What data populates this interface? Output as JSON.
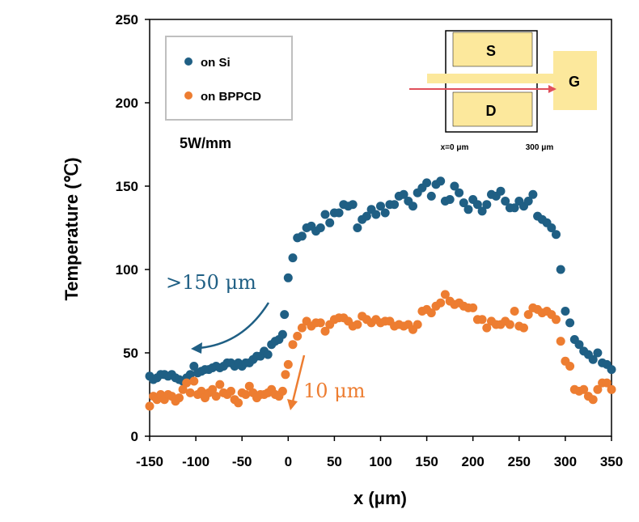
{
  "chart_data": {
    "type": "scatter",
    "xlabel": "x (μm)",
    "ylabel": "Temperature (℃)",
    "xlim": [
      -150,
      350
    ],
    "ylim": [
      0,
      250
    ],
    "xticks": [
      -150,
      -100,
      -50,
      0,
      50,
      100,
      150,
      200,
      250,
      300,
      350
    ],
    "yticks": [
      0,
      50,
      100,
      150,
      200,
      250
    ],
    "xtick_labels": [
      "-150",
      "-100",
      "-50",
      "0",
      "50",
      "100",
      "150",
      "200",
      "250",
      "300",
      "350"
    ],
    "ytick_labels": [
      "0",
      "50",
      "100",
      "150",
      "200",
      "250"
    ],
    "condition": "5W/mm",
    "legend": {
      "position": "top-left",
      "entries": [
        "on Si",
        "on BPPCD"
      ]
    },
    "series": [
      {
        "name": "on Si",
        "color": "#1f5f84",
        "points": [
          [
            -150,
            36
          ],
          [
            -146,
            34
          ],
          [
            -142,
            35
          ],
          [
            -138,
            37
          ],
          [
            -134,
            37
          ],
          [
            -130,
            36
          ],
          [
            -126,
            37
          ],
          [
            -122,
            35
          ],
          [
            -118,
            34
          ],
          [
            -114,
            33
          ],
          [
            -110,
            35
          ],
          [
            -106,
            37
          ],
          [
            -102,
            42
          ],
          [
            -98,
            38
          ],
          [
            -94,
            39
          ],
          [
            -90,
            40
          ],
          [
            -86,
            40
          ],
          [
            -82,
            41
          ],
          [
            -78,
            42
          ],
          [
            -74,
            41
          ],
          [
            -70,
            42
          ],
          [
            -66,
            44
          ],
          [
            -62,
            44
          ],
          [
            -58,
            42
          ],
          [
            -54,
            44
          ],
          [
            -50,
            42
          ],
          [
            -46,
            44
          ],
          [
            -42,
            44
          ],
          [
            -38,
            46
          ],
          [
            -34,
            48
          ],
          [
            -30,
            48
          ],
          [
            -26,
            51
          ],
          [
            -22,
            49
          ],
          [
            -18,
            55
          ],
          [
            -14,
            57
          ],
          [
            -10,
            58
          ],
          [
            -6,
            61
          ],
          [
            -4,
            73
          ],
          [
            0,
            95
          ],
          [
            5,
            107
          ],
          [
            10,
            119
          ],
          [
            15,
            120
          ],
          [
            20,
            125
          ],
          [
            25,
            126
          ],
          [
            30,
            123
          ],
          [
            35,
            125
          ],
          [
            40,
            133
          ],
          [
            45,
            128
          ],
          [
            50,
            134
          ],
          [
            55,
            134
          ],
          [
            60,
            139
          ],
          [
            65,
            138
          ],
          [
            70,
            139
          ],
          [
            75,
            125
          ],
          [
            80,
            130
          ],
          [
            85,
            132
          ],
          [
            90,
            136
          ],
          [
            95,
            133
          ],
          [
            100,
            138
          ],
          [
            105,
            134
          ],
          [
            110,
            139
          ],
          [
            115,
            139
          ],
          [
            120,
            144
          ],
          [
            125,
            145
          ],
          [
            130,
            141
          ],
          [
            135,
            138
          ],
          [
            140,
            146
          ],
          [
            145,
            149
          ],
          [
            150,
            152
          ],
          [
            155,
            144
          ],
          [
            160,
            151
          ],
          [
            165,
            153
          ],
          [
            170,
            141
          ],
          [
            175,
            142
          ],
          [
            180,
            150
          ],
          [
            185,
            146
          ],
          [
            190,
            140
          ],
          [
            195,
            136
          ],
          [
            200,
            142
          ],
          [
            205,
            139
          ],
          [
            210,
            135
          ],
          [
            215,
            139
          ],
          [
            220,
            145
          ],
          [
            225,
            144
          ],
          [
            230,
            147
          ],
          [
            235,
            141
          ],
          [
            240,
            137
          ],
          [
            245,
            137
          ],
          [
            250,
            141
          ],
          [
            255,
            138
          ],
          [
            260,
            141
          ],
          [
            265,
            145
          ],
          [
            270,
            132
          ],
          [
            275,
            130
          ],
          [
            280,
            128
          ],
          [
            285,
            125
          ],
          [
            290,
            121
          ],
          [
            295,
            100
          ],
          [
            300,
            75
          ],
          [
            305,
            68
          ],
          [
            310,
            58
          ],
          [
            315,
            55
          ],
          [
            320,
            51
          ],
          [
            325,
            49
          ],
          [
            330,
            46
          ],
          [
            335,
            50
          ],
          [
            340,
            44
          ],
          [
            345,
            43
          ],
          [
            350,
            40
          ]
        ]
      },
      {
        "name": "on BPPCD",
        "color": "#ed7d31",
        "points": [
          [
            -150,
            18
          ],
          [
            -146,
            24
          ],
          [
            -142,
            22
          ],
          [
            -138,
            25
          ],
          [
            -134,
            22
          ],
          [
            -130,
            25
          ],
          [
            -126,
            24
          ],
          [
            -122,
            21
          ],
          [
            -118,
            23
          ],
          [
            -114,
            28
          ],
          [
            -110,
            32
          ],
          [
            -106,
            26
          ],
          [
            -102,
            33
          ],
          [
            -98,
            25
          ],
          [
            -94,
            27
          ],
          [
            -90,
            23
          ],
          [
            -86,
            26
          ],
          [
            -82,
            28
          ],
          [
            -78,
            24
          ],
          [
            -74,
            31
          ],
          [
            -70,
            26
          ],
          [
            -66,
            25
          ],
          [
            -62,
            27
          ],
          [
            -58,
            22
          ],
          [
            -54,
            20
          ],
          [
            -50,
            26
          ],
          [
            -46,
            25
          ],
          [
            -42,
            30
          ],
          [
            -38,
            26
          ],
          [
            -34,
            23
          ],
          [
            -30,
            25
          ],
          [
            -26,
            25
          ],
          [
            -22,
            26
          ],
          [
            -18,
            28
          ],
          [
            -14,
            25
          ],
          [
            -10,
            24
          ],
          [
            -6,
            27
          ],
          [
            -3,
            37
          ],
          [
            0,
            43
          ],
          [
            5,
            55
          ],
          [
            10,
            60
          ],
          [
            15,
            65
          ],
          [
            20,
            69
          ],
          [
            25,
            66
          ],
          [
            30,
            68
          ],
          [
            35,
            68
          ],
          [
            40,
            63
          ],
          [
            45,
            67
          ],
          [
            50,
            70
          ],
          [
            55,
            71
          ],
          [
            60,
            71
          ],
          [
            65,
            69
          ],
          [
            70,
            66
          ],
          [
            75,
            67
          ],
          [
            80,
            72
          ],
          [
            85,
            70
          ],
          [
            90,
            68
          ],
          [
            95,
            70
          ],
          [
            100,
            68
          ],
          [
            105,
            69
          ],
          [
            110,
            69
          ],
          [
            115,
            66
          ],
          [
            120,
            67
          ],
          [
            125,
            66
          ],
          [
            130,
            67
          ],
          [
            135,
            64
          ],
          [
            140,
            67
          ],
          [
            145,
            75
          ],
          [
            150,
            76
          ],
          [
            155,
            74
          ],
          [
            160,
            78
          ],
          [
            165,
            80
          ],
          [
            170,
            85
          ],
          [
            175,
            81
          ],
          [
            180,
            79
          ],
          [
            185,
            80
          ],
          [
            190,
            78
          ],
          [
            195,
            77
          ],
          [
            200,
            77
          ],
          [
            205,
            70
          ],
          [
            210,
            70
          ],
          [
            215,
            65
          ],
          [
            220,
            69
          ],
          [
            225,
            67
          ],
          [
            230,
            67
          ],
          [
            235,
            69
          ],
          [
            240,
            67
          ],
          [
            245,
            75
          ],
          [
            250,
            66
          ],
          [
            255,
            65
          ],
          [
            260,
            73
          ],
          [
            265,
            77
          ],
          [
            270,
            76
          ],
          [
            275,
            74
          ],
          [
            280,
            75
          ],
          [
            285,
            73
          ],
          [
            290,
            70
          ],
          [
            295,
            57
          ],
          [
            300,
            45
          ],
          [
            305,
            42
          ],
          [
            310,
            28
          ],
          [
            315,
            27
          ],
          [
            320,
            28
          ],
          [
            325,
            24
          ],
          [
            330,
            22
          ],
          [
            335,
            28
          ],
          [
            340,
            32
          ],
          [
            345,
            32
          ],
          [
            350,
            28
          ]
        ]
      }
    ],
    "annotations": [
      {
        "text": ">150 μm",
        "color": "#1f5f84"
      },
      {
        "text": "10 μm",
        "color": "#ed7d31"
      }
    ],
    "inset": {
      "source_label": "S",
      "drain_label": "D",
      "gate_label": "G",
      "x_start_label": "x=0 μm",
      "x_end_label": "300 μm",
      "pad_color": "#fce89c",
      "arrow_color": "#e0505b"
    }
  }
}
